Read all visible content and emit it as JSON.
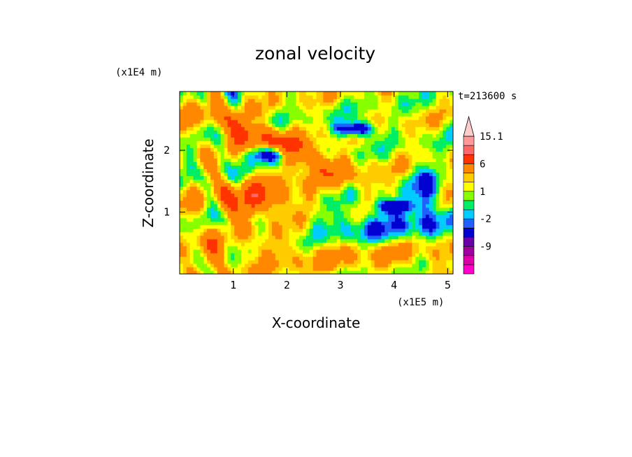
{
  "chart_data": {
    "type": "heatmap",
    "title": "zonal velocity",
    "xlabel": "X-coordinate",
    "ylabel": "Z-coordinate",
    "x_unit": "(x1E5 m)",
    "y_unit": "(x1E4 m)",
    "time_label": "t=213600 s",
    "xlim": [
      0,
      5.1
    ],
    "ylim": [
      0,
      2.95
    ],
    "x_ticks": [
      "1",
      "2",
      "3",
      "4",
      "5"
    ],
    "x_tick_values": [
      1,
      2,
      3,
      4,
      5
    ],
    "y_ticks": [
      "1",
      "2"
    ],
    "y_tick_values": [
      1,
      2
    ],
    "colorbar_labels": [
      "15.1",
      "6",
      "1",
      "-2",
      "-9"
    ],
    "colorbar_label_values": [
      15.1,
      6,
      1,
      -2,
      -9
    ],
    "colorbar_levels": [
      -15,
      -12,
      -9,
      -6,
      -3,
      -2,
      -1,
      0,
      1,
      2,
      3,
      6,
      9,
      12,
      15.1
    ],
    "colorbar_colors": [
      "#ff00cc",
      "#dd00aa",
      "#a000a0",
      "#6a00a8",
      "#0000d0",
      "#2060ff",
      "#00ccff",
      "#00ee66",
      "#88ff00",
      "#ffff00",
      "#ffcc00",
      "#ff8800",
      "#ff3300",
      "#ff6666",
      "#ff9999",
      "#ffcccc"
    ]
  }
}
